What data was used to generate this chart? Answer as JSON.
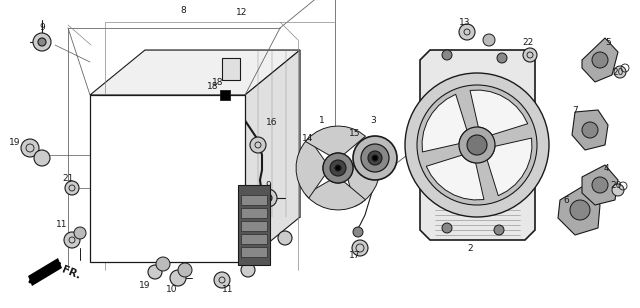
{
  "bg_color": "#ffffff",
  "line_color": "#1a1a1a",
  "figsize": [
    6.4,
    3.08
  ],
  "dpi": 100,
  "xlim": [
    0,
    640
  ],
  "ylim": [
    0,
    308
  ]
}
